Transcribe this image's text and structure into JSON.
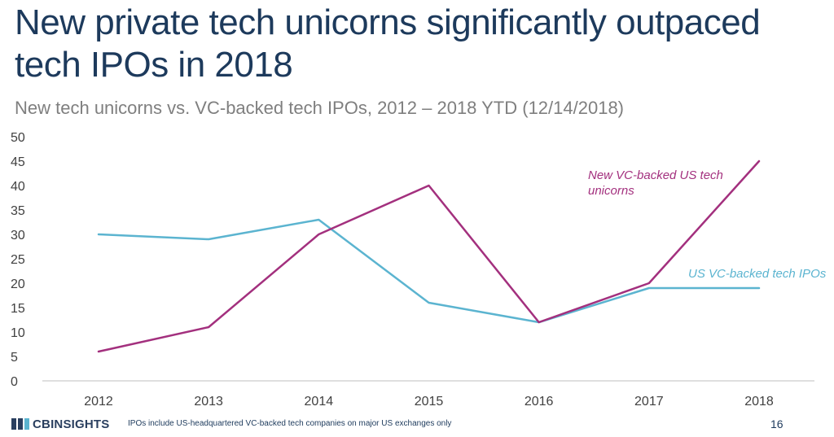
{
  "slide": {
    "title": "New private tech unicorns significantly outpaced tech IPOs in 2018",
    "subtitle": "New tech unicorns vs. VC-backed tech IPOs, 2012 – 2018 YTD (12/14/2018)",
    "footnote": "IPOs include US-headquartered VC-backed tech companies on major US exchanges only",
    "page_number": "16",
    "logo_text": "CBINSIGHTS"
  },
  "chart_data": {
    "type": "line",
    "title": "New tech unicorns vs. VC-backed tech IPOs, 2012 – 2018 YTD (12/14/2018)",
    "xlabel": "",
    "ylabel": "",
    "categories": [
      "2012",
      "2013",
      "2014",
      "2015",
      "2016",
      "2017",
      "2018"
    ],
    "ylim": [
      0,
      50
    ],
    "yticks": [
      "0",
      "5",
      "10",
      "15",
      "20",
      "25",
      "30",
      "35",
      "40",
      "45",
      "50"
    ],
    "grid": false,
    "legend": "inline labels",
    "series": [
      {
        "name": "US VC-backed tech IPOs",
        "label_lines": [
          "US VC-backed tech IPOs"
        ],
        "color": "#5bb4d0",
        "values": [
          30,
          29,
          33,
          16,
          12,
          19,
          19
        ]
      },
      {
        "name": "New VC-backed US tech unicorns",
        "label_lines": [
          "New VC-backed US tech",
          "unicorns"
        ],
        "color": "#a3307e",
        "values": [
          6,
          11,
          30,
          40,
          12,
          20,
          45
        ]
      }
    ]
  },
  "colors": {
    "title": "#1d3a5c",
    "subtitle": "#7f7f7f",
    "axis": "#bfbfbf",
    "tick_text": "#404040"
  }
}
